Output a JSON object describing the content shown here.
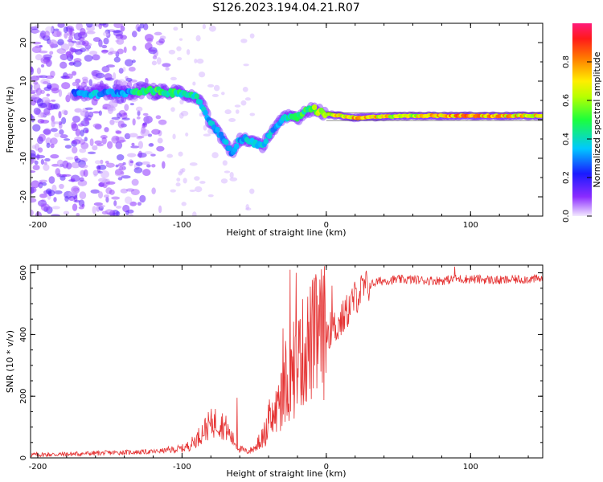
{
  "figure_title": "S126.2023.194.04.21.R07",
  "chart_data": [
    {
      "type": "heatmap",
      "xlabel": "Height of straight line (km)",
      "ylabel": "Frequency (Hz)",
      "xlim": [
        -205,
        150
      ],
      "ylim": [
        -25,
        25
      ],
      "x_ticks": [
        -200,
        -100,
        0,
        100
      ],
      "y_ticks": [
        -20,
        -10,
        0,
        10,
        20
      ],
      "colorbar": {
        "label": "Normalized spectral amplitude",
        "range": [
          0,
          1
        ],
        "ticks": [
          "0.0",
          "0.2",
          "0.4",
          "0.6",
          "0.8"
        ],
        "colormap": "rainbow (purple-blue-cyan-green-yellow-orange-red-pink)"
      },
      "ridge": {
        "description": "main spectral ridge (frequency vs height)",
        "x": [
          -170,
          -160,
          -150,
          -140,
          -130,
          -120,
          -110,
          -100,
          -90,
          -85,
          -80,
          -75,
          -70,
          -65,
          -60,
          -55,
          -50,
          -45,
          -40,
          -35,
          -30,
          -25,
          -20,
          -15,
          -10,
          -5,
          0,
          10,
          20,
          40,
          60,
          80,
          100,
          120,
          150
        ],
        "y": [
          7,
          6.5,
          7,
          7,
          7.5,
          7.5,
          7,
          7,
          6,
          3,
          -1,
          -3,
          -6,
          -9,
          -5,
          -5,
          -6,
          -7,
          -4,
          -2,
          0,
          1,
          0.5,
          2,
          3,
          2,
          1.5,
          1,
          0.5,
          0.8,
          1,
          1,
          1,
          1,
          1
        ],
        "amplitude": [
          0.3,
          0.35,
          0.3,
          0.3,
          0.45,
          0.5,
          0.45,
          0.45,
          0.4,
          0.4,
          0.35,
          0.35,
          0.35,
          0.3,
          0.35,
          0.35,
          0.35,
          0.4,
          0.35,
          0.35,
          0.4,
          0.45,
          0.5,
          0.5,
          0.55,
          0.6,
          0.65,
          0.7,
          0.75,
          0.7,
          0.65,
          0.75,
          0.8,
          0.75,
          0.7
        ]
      },
      "noise_region": {
        "description": "scattered low-amplitude speckle",
        "x_range": [
          -205,
          -110
        ],
        "y_range": [
          -25,
          25
        ]
      }
    },
    {
      "type": "line",
      "xlabel": "Height of straight line (km)",
      "ylabel": "SNR (10 * v/v)",
      "xlim": [
        -205,
        150
      ],
      "ylim": [
        0,
        625
      ],
      "x_ticks": [
        -200,
        -100,
        0,
        100
      ],
      "y_ticks": [
        0,
        200,
        400,
        600
      ],
      "color": "#e53333",
      "series": [
        {
          "x": [
            -205,
            -180,
            -160,
            -140,
            -120,
            -110,
            -100,
            -95,
            -90,
            -85,
            -80,
            -75,
            -70,
            -65,
            -60,
            -55,
            -50,
            -45,
            -40,
            -35,
            -30,
            -25,
            -20,
            -15,
            -10,
            -5,
            0,
            5,
            10,
            15,
            20,
            25,
            30,
            35,
            40,
            50,
            60,
            70,
            80,
            90,
            100,
            110,
            120,
            130,
            140,
            150
          ],
          "values": [
            10,
            12,
            15,
            18,
            20,
            25,
            30,
            40,
            60,
            90,
            110,
            120,
            100,
            60,
            30,
            20,
            30,
            60,
            100,
            150,
            200,
            250,
            300,
            350,
            380,
            400,
            410,
            420,
            440,
            480,
            520,
            545,
            560,
            570,
            575,
            578,
            578,
            575,
            575,
            580,
            580,
            578,
            575,
            578,
            580,
            580
          ]
        }
      ],
      "spikes": [
        {
          "x": -30,
          "value": 420
        },
        {
          "x": -25,
          "value": 610
        },
        {
          "x": -21,
          "value": 600
        },
        {
          "x": -18,
          "value": 450
        },
        {
          "x": -62,
          "value": 195
        },
        {
          "x": 89,
          "value": 620
        }
      ]
    }
  ]
}
